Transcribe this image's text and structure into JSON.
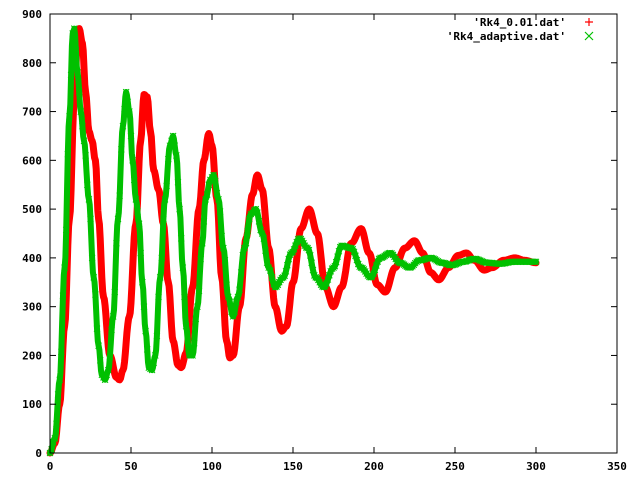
{
  "chart_data": {
    "type": "line",
    "xlim": [
      0,
      350
    ],
    "ylim": [
      0,
      900
    ],
    "x_ticks": [
      0,
      50,
      100,
      150,
      200,
      250,
      300,
      350
    ],
    "y_ticks": [
      0,
      100,
      200,
      300,
      400,
      500,
      600,
      700,
      800,
      900
    ],
    "legend_position": "top-right",
    "grid": false,
    "series": [
      {
        "name": "'Rk4_0.01.dat'",
        "marker": "+",
        "color": "#ff0000",
        "points": [
          [
            0,
            0
          ],
          [
            3,
            20
          ],
          [
            6,
            100
          ],
          [
            9,
            260
          ],
          [
            12,
            480
          ],
          [
            15,
            720
          ],
          [
            17,
            850
          ],
          [
            18,
            870
          ],
          [
            20,
            840
          ],
          [
            22,
            740
          ],
          [
            24,
            660
          ],
          [
            26,
            640
          ],
          [
            28,
            600
          ],
          [
            30,
            480
          ],
          [
            33,
            320
          ],
          [
            37,
            200
          ],
          [
            41,
            155
          ],
          [
            43,
            150
          ],
          [
            45,
            170
          ],
          [
            49,
            280
          ],
          [
            53,
            470
          ],
          [
            56,
            640
          ],
          [
            58,
            735
          ],
          [
            60,
            730
          ],
          [
            62,
            660
          ],
          [
            64,
            580
          ],
          [
            67,
            540
          ],
          [
            70,
            470
          ],
          [
            73,
            350
          ],
          [
            76,
            230
          ],
          [
            79,
            180
          ],
          [
            81,
            175
          ],
          [
            84,
            205
          ],
          [
            88,
            340
          ],
          [
            92,
            500
          ],
          [
            95,
            600
          ],
          [
            98,
            655
          ],
          [
            100,
            630
          ],
          [
            103,
            520
          ],
          [
            106,
            360
          ],
          [
            109,
            230
          ],
          [
            111,
            195
          ],
          [
            113,
            200
          ],
          [
            117,
            300
          ],
          [
            121,
            440
          ],
          [
            125,
            530
          ],
          [
            128,
            570
          ],
          [
            131,
            540
          ],
          [
            135,
            420
          ],
          [
            139,
            300
          ],
          [
            143,
            250
          ],
          [
            146,
            260
          ],
          [
            150,
            350
          ],
          [
            155,
            460
          ],
          [
            160,
            500
          ],
          [
            165,
            450
          ],
          [
            170,
            340
          ],
          [
            175,
            300
          ],
          [
            180,
            340
          ],
          [
            186,
            430
          ],
          [
            192,
            460
          ],
          [
            197,
            410
          ],
          [
            202,
            345
          ],
          [
            207,
            330
          ],
          [
            213,
            380
          ],
          [
            219,
            420
          ],
          [
            225,
            435
          ],
          [
            230,
            410
          ],
          [
            235,
            370
          ],
          [
            240,
            355
          ],
          [
            246,
            380
          ],
          [
            252,
            405
          ],
          [
            257,
            410
          ],
          [
            262,
            395
          ],
          [
            268,
            375
          ],
          [
            273,
            380
          ],
          [
            280,
            395
          ],
          [
            287,
            400
          ],
          [
            293,
            395
          ],
          [
            300,
            390
          ]
        ]
      },
      {
        "name": "'Rk4_adaptive.dat'",
        "marker": "x",
        "color": "#00c000",
        "points": [
          [
            0,
            0
          ],
          [
            3,
            30
          ],
          [
            6,
            150
          ],
          [
            9,
            380
          ],
          [
            12,
            690
          ],
          [
            14,
            860
          ],
          [
            15,
            870
          ],
          [
            17,
            780
          ],
          [
            19,
            700
          ],
          [
            21,
            640
          ],
          [
            24,
            520
          ],
          [
            27,
            360
          ],
          [
            30,
            220
          ],
          [
            32,
            160
          ],
          [
            34,
            150
          ],
          [
            36,
            170
          ],
          [
            39,
            280
          ],
          [
            42,
            480
          ],
          [
            45,
            670
          ],
          [
            47,
            740
          ],
          [
            49,
            700
          ],
          [
            51,
            600
          ],
          [
            53,
            520
          ],
          [
            55,
            470
          ],
          [
            57,
            350
          ],
          [
            59,
            250
          ],
          [
            61,
            175
          ],
          [
            63,
            170
          ],
          [
            65,
            200
          ],
          [
            68,
            360
          ],
          [
            71,
            520
          ],
          [
            74,
            630
          ],
          [
            76,
            650
          ],
          [
            78,
            610
          ],
          [
            80,
            500
          ],
          [
            82,
            380
          ],
          [
            84,
            260
          ],
          [
            86,
            200
          ],
          [
            88,
            200
          ],
          [
            91,
            300
          ],
          [
            94,
            430
          ],
          [
            96,
            520
          ],
          [
            99,
            560
          ],
          [
            101,
            570
          ],
          [
            104,
            520
          ],
          [
            107,
            420
          ],
          [
            110,
            320
          ],
          [
            113,
            280
          ],
          [
            116,
            320
          ],
          [
            120,
            420
          ],
          [
            124,
            490
          ],
          [
            127,
            500
          ],
          [
            131,
            450
          ],
          [
            135,
            380
          ],
          [
            139,
            340
          ],
          [
            144,
            360
          ],
          [
            149,
            410
          ],
          [
            154,
            440
          ],
          [
            159,
            420
          ],
          [
            164,
            360
          ],
          [
            169,
            340
          ],
          [
            175,
            380
          ],
          [
            180,
            425
          ],
          [
            186,
            420
          ],
          [
            192,
            380
          ],
          [
            198,
            360
          ],
          [
            204,
            400
          ],
          [
            210,
            410
          ],
          [
            216,
            390
          ],
          [
            222,
            380
          ],
          [
            228,
            395
          ],
          [
            235,
            400
          ],
          [
            242,
            390
          ],
          [
            248,
            385
          ],
          [
            255,
            392
          ],
          [
            262,
            398
          ],
          [
            270,
            390
          ],
          [
            278,
            388
          ],
          [
            286,
            392
          ],
          [
            294,
            392
          ],
          [
            300,
            392
          ]
        ]
      }
    ]
  }
}
